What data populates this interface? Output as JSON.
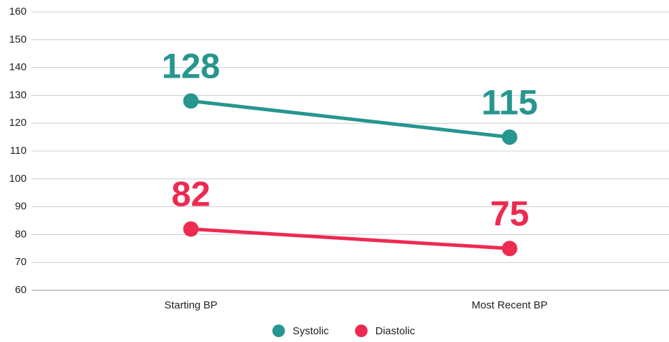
{
  "chart_data": {
    "type": "line",
    "categories": [
      "Starting BP",
      "Most Recent BP"
    ],
    "series": [
      {
        "name": "Systolic",
        "color": "#26968f",
        "values": [
          128,
          115
        ]
      },
      {
        "name": "Diastolic",
        "color": "#ee2a50",
        "values": [
          82,
          75
        ]
      }
    ],
    "ylim": [
      60,
      160
    ],
    "yticks": [
      60,
      70,
      80,
      90,
      100,
      110,
      120,
      130,
      140,
      150,
      160
    ],
    "grid": true,
    "legend": "bottom"
  }
}
